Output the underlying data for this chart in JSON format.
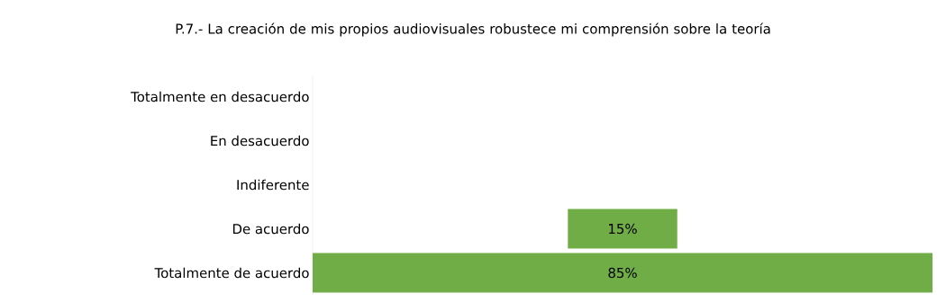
{
  "chart_data": {
    "type": "other",
    "title": "P.7.- La creación de mis propios audiovisuales robustece mi comprensión sobre la teoría",
    "categories": [
      "Totalmente en desacuerdo",
      "En desacuerdo",
      "Indiferente",
      "De acuerdo",
      "Totalmente de acuerdo"
    ],
    "values": [
      null,
      null,
      null,
      15,
      85
    ],
    "color": "#70ad47",
    "value_labels": [
      null,
      null,
      null,
      "15%",
      "85%"
    ]
  }
}
